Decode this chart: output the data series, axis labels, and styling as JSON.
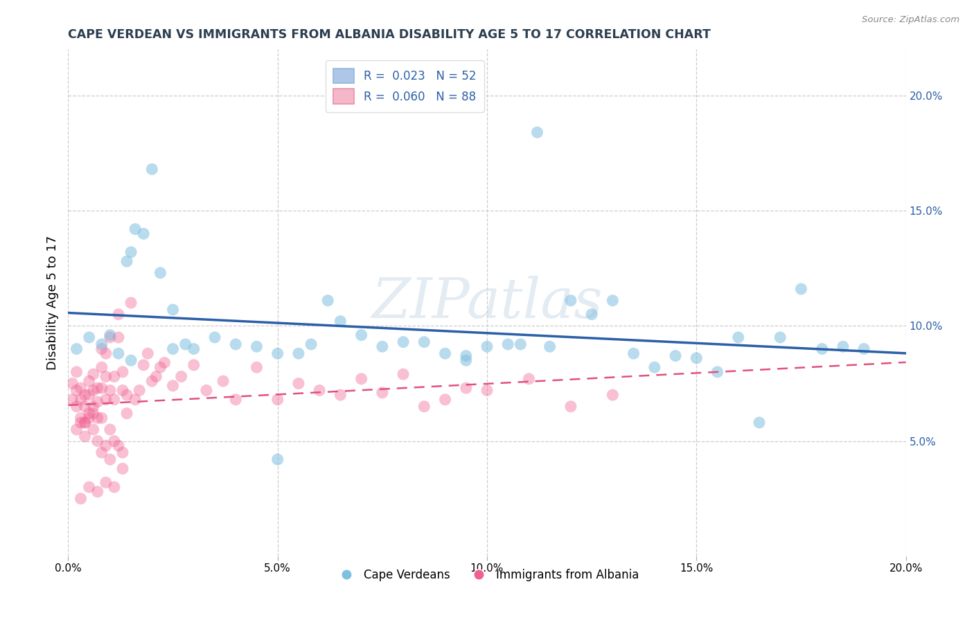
{
  "title": "CAPE VERDEAN VS IMMIGRANTS FROM ALBANIA DISABILITY AGE 5 TO 17 CORRELATION CHART",
  "source": "Source: ZipAtlas.com",
  "ylabel": "Disability Age 5 to 17",
  "xlim": [
    0.0,
    0.2
  ],
  "ylim": [
    0.0,
    0.22
  ],
  "x_ticks": [
    0.0,
    0.05,
    0.1,
    0.15,
    0.2
  ],
  "x_tick_labels": [
    "0.0%",
    "5.0%",
    "10.0%",
    "15.0%",
    "20.0%"
  ],
  "y_ticks": [
    0.05,
    0.1,
    0.15,
    0.2
  ],
  "y_tick_labels": [
    "5.0%",
    "10.0%",
    "15.0%",
    "20.0%"
  ],
  "legend1_label": "R =  0.023   N = 52",
  "legend2_label": "R =  0.060   N = 88",
  "legend1_color": "#aec6e8",
  "legend2_color": "#f4b8ca",
  "blue_scatter_color": "#7fbfdf",
  "pink_scatter_color": "#f06090",
  "blue_line_color": "#2b5fa8",
  "pink_line_color": "#e05080",
  "grid_color": "#cccccc",
  "background_color": "#ffffff",
  "watermark": "ZIPatlas",
  "blue_x": [
    0.002,
    0.005,
    0.008,
    0.01,
    0.012,
    0.014,
    0.015,
    0.016,
    0.018,
    0.02,
    0.022,
    0.025,
    0.028,
    0.03,
    0.035,
    0.04,
    0.045,
    0.05,
    0.055,
    0.058,
    0.062,
    0.065,
    0.07,
    0.075,
    0.08,
    0.085,
    0.09,
    0.095,
    0.1,
    0.105,
    0.108,
    0.112,
    0.115,
    0.12,
    0.125,
    0.13,
    0.135,
    0.14,
    0.145,
    0.15,
    0.155,
    0.16,
    0.165,
    0.17,
    0.175,
    0.18,
    0.185,
    0.19,
    0.015,
    0.025,
    0.05,
    0.095
  ],
  "blue_y": [
    0.09,
    0.095,
    0.092,
    0.096,
    0.088,
    0.128,
    0.132,
    0.142,
    0.14,
    0.168,
    0.123,
    0.107,
    0.092,
    0.09,
    0.095,
    0.092,
    0.091,
    0.042,
    0.088,
    0.092,
    0.111,
    0.102,
    0.096,
    0.091,
    0.093,
    0.093,
    0.088,
    0.087,
    0.091,
    0.092,
    0.092,
    0.184,
    0.091,
    0.111,
    0.105,
    0.111,
    0.088,
    0.082,
    0.087,
    0.086,
    0.08,
    0.095,
    0.058,
    0.095,
    0.116,
    0.09,
    0.091,
    0.09,
    0.085,
    0.09,
    0.088,
    0.085
  ],
  "pink_x": [
    0.001,
    0.001,
    0.002,
    0.002,
    0.002,
    0.003,
    0.003,
    0.003,
    0.004,
    0.004,
    0.004,
    0.005,
    0.005,
    0.005,
    0.006,
    0.006,
    0.006,
    0.007,
    0.007,
    0.007,
    0.008,
    0.008,
    0.008,
    0.009,
    0.009,
    0.009,
    0.01,
    0.01,
    0.011,
    0.011,
    0.012,
    0.012,
    0.013,
    0.013,
    0.014,
    0.014,
    0.015,
    0.016,
    0.017,
    0.018,
    0.019,
    0.02,
    0.021,
    0.022,
    0.023,
    0.025,
    0.027,
    0.03,
    0.033,
    0.037,
    0.04,
    0.045,
    0.05,
    0.055,
    0.06,
    0.065,
    0.07,
    0.075,
    0.08,
    0.085,
    0.09,
    0.095,
    0.1,
    0.11,
    0.12,
    0.13,
    0.002,
    0.003,
    0.004,
    0.005,
    0.006,
    0.007,
    0.008,
    0.009,
    0.01,
    0.011,
    0.012,
    0.013,
    0.003,
    0.005,
    0.007,
    0.009,
    0.011,
    0.013,
    0.004,
    0.006,
    0.008,
    0.01
  ],
  "pink_y": [
    0.075,
    0.068,
    0.08,
    0.072,
    0.065,
    0.073,
    0.068,
    0.06,
    0.07,
    0.065,
    0.058,
    0.076,
    0.07,
    0.062,
    0.079,
    0.072,
    0.065,
    0.073,
    0.067,
    0.06,
    0.09,
    0.082,
    0.073,
    0.088,
    0.078,
    0.068,
    0.095,
    0.072,
    0.078,
    0.068,
    0.105,
    0.095,
    0.08,
    0.072,
    0.07,
    0.062,
    0.11,
    0.068,
    0.072,
    0.083,
    0.088,
    0.076,
    0.078,
    0.082,
    0.084,
    0.074,
    0.078,
    0.083,
    0.072,
    0.076,
    0.068,
    0.082,
    0.068,
    0.075,
    0.072,
    0.07,
    0.077,
    0.071,
    0.079,
    0.065,
    0.068,
    0.073,
    0.072,
    0.077,
    0.065,
    0.07,
    0.055,
    0.058,
    0.052,
    0.06,
    0.055,
    0.05,
    0.045,
    0.048,
    0.042,
    0.05,
    0.048,
    0.045,
    0.025,
    0.03,
    0.028,
    0.032,
    0.03,
    0.038,
    0.058,
    0.062,
    0.06,
    0.055
  ]
}
